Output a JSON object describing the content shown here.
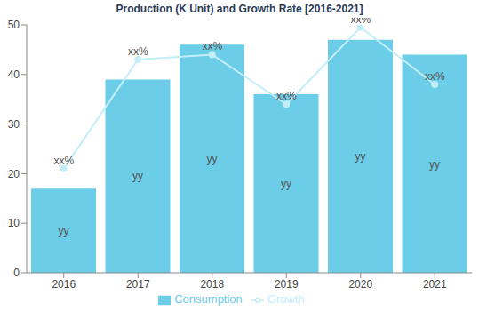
{
  "chart_data": {
    "type": "bar",
    "title": "Production (K Unit) and Growth Rate [2016-2021]",
    "categories": [
      "2016",
      "2017",
      "2018",
      "2019",
      "2020",
      "2021"
    ],
    "series": [
      {
        "name": "Consumption",
        "type": "bar",
        "color": "#6ccde8",
        "values": [
          17,
          39,
          46,
          36,
          47,
          44
        ],
        "value_labels": [
          "yy",
          "yy",
          "yy",
          "yy",
          "yy",
          "yy"
        ]
      },
      {
        "name": "Growth",
        "type": "line",
        "color": "#c3eef8",
        "marker": "circle",
        "values": [
          21,
          43,
          44,
          34,
          49.5,
          38
        ],
        "value_labels": [
          "xx%",
          "xx%",
          "xx%",
          "xx%",
          "xx%",
          "xx%"
        ]
      }
    ],
    "ylim": [
      0,
      50
    ],
    "yticks": [
      0,
      10,
      20,
      30,
      40,
      50
    ],
    "grid": false,
    "legend": "bottom",
    "data_labels": true
  }
}
